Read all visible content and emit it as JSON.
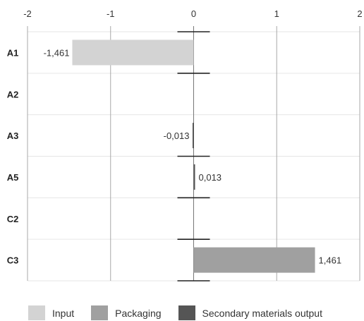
{
  "chart_data": {
    "type": "bar",
    "orientation": "horizontal",
    "categories": [
      "A1",
      "A2",
      "A3",
      "A5",
      "C2",
      "C3"
    ],
    "xlim": [
      -2,
      2
    ],
    "x_ticks": [
      -2,
      -1,
      0,
      1,
      2
    ],
    "x_tick_labels": [
      "-2",
      "-1",
      "0",
      "1",
      "2"
    ],
    "x_axis_position": "top",
    "grid": true,
    "legend_position": "bottom",
    "series": [
      {
        "name": "Input",
        "color": "#d3d3d3",
        "values": [
          -1.461,
          null,
          null,
          null,
          null,
          null
        ],
        "labels": [
          "-1,461",
          "",
          "",
          "",
          "",
          ""
        ]
      },
      {
        "name": "Packaging",
        "color": "#a0a0a0",
        "values": [
          null,
          null,
          null,
          null,
          null,
          1.461
        ],
        "labels": [
          "",
          "",
          "",
          "",
          "",
          "1,461"
        ]
      },
      {
        "name": "Secondary materials output",
        "color": "#555555",
        "values": [
          null,
          null,
          -0.013,
          0.013,
          null,
          null
        ],
        "labels": [
          "",
          "",
          "-0,013",
          "0,013",
          "",
          ""
        ]
      }
    ]
  }
}
